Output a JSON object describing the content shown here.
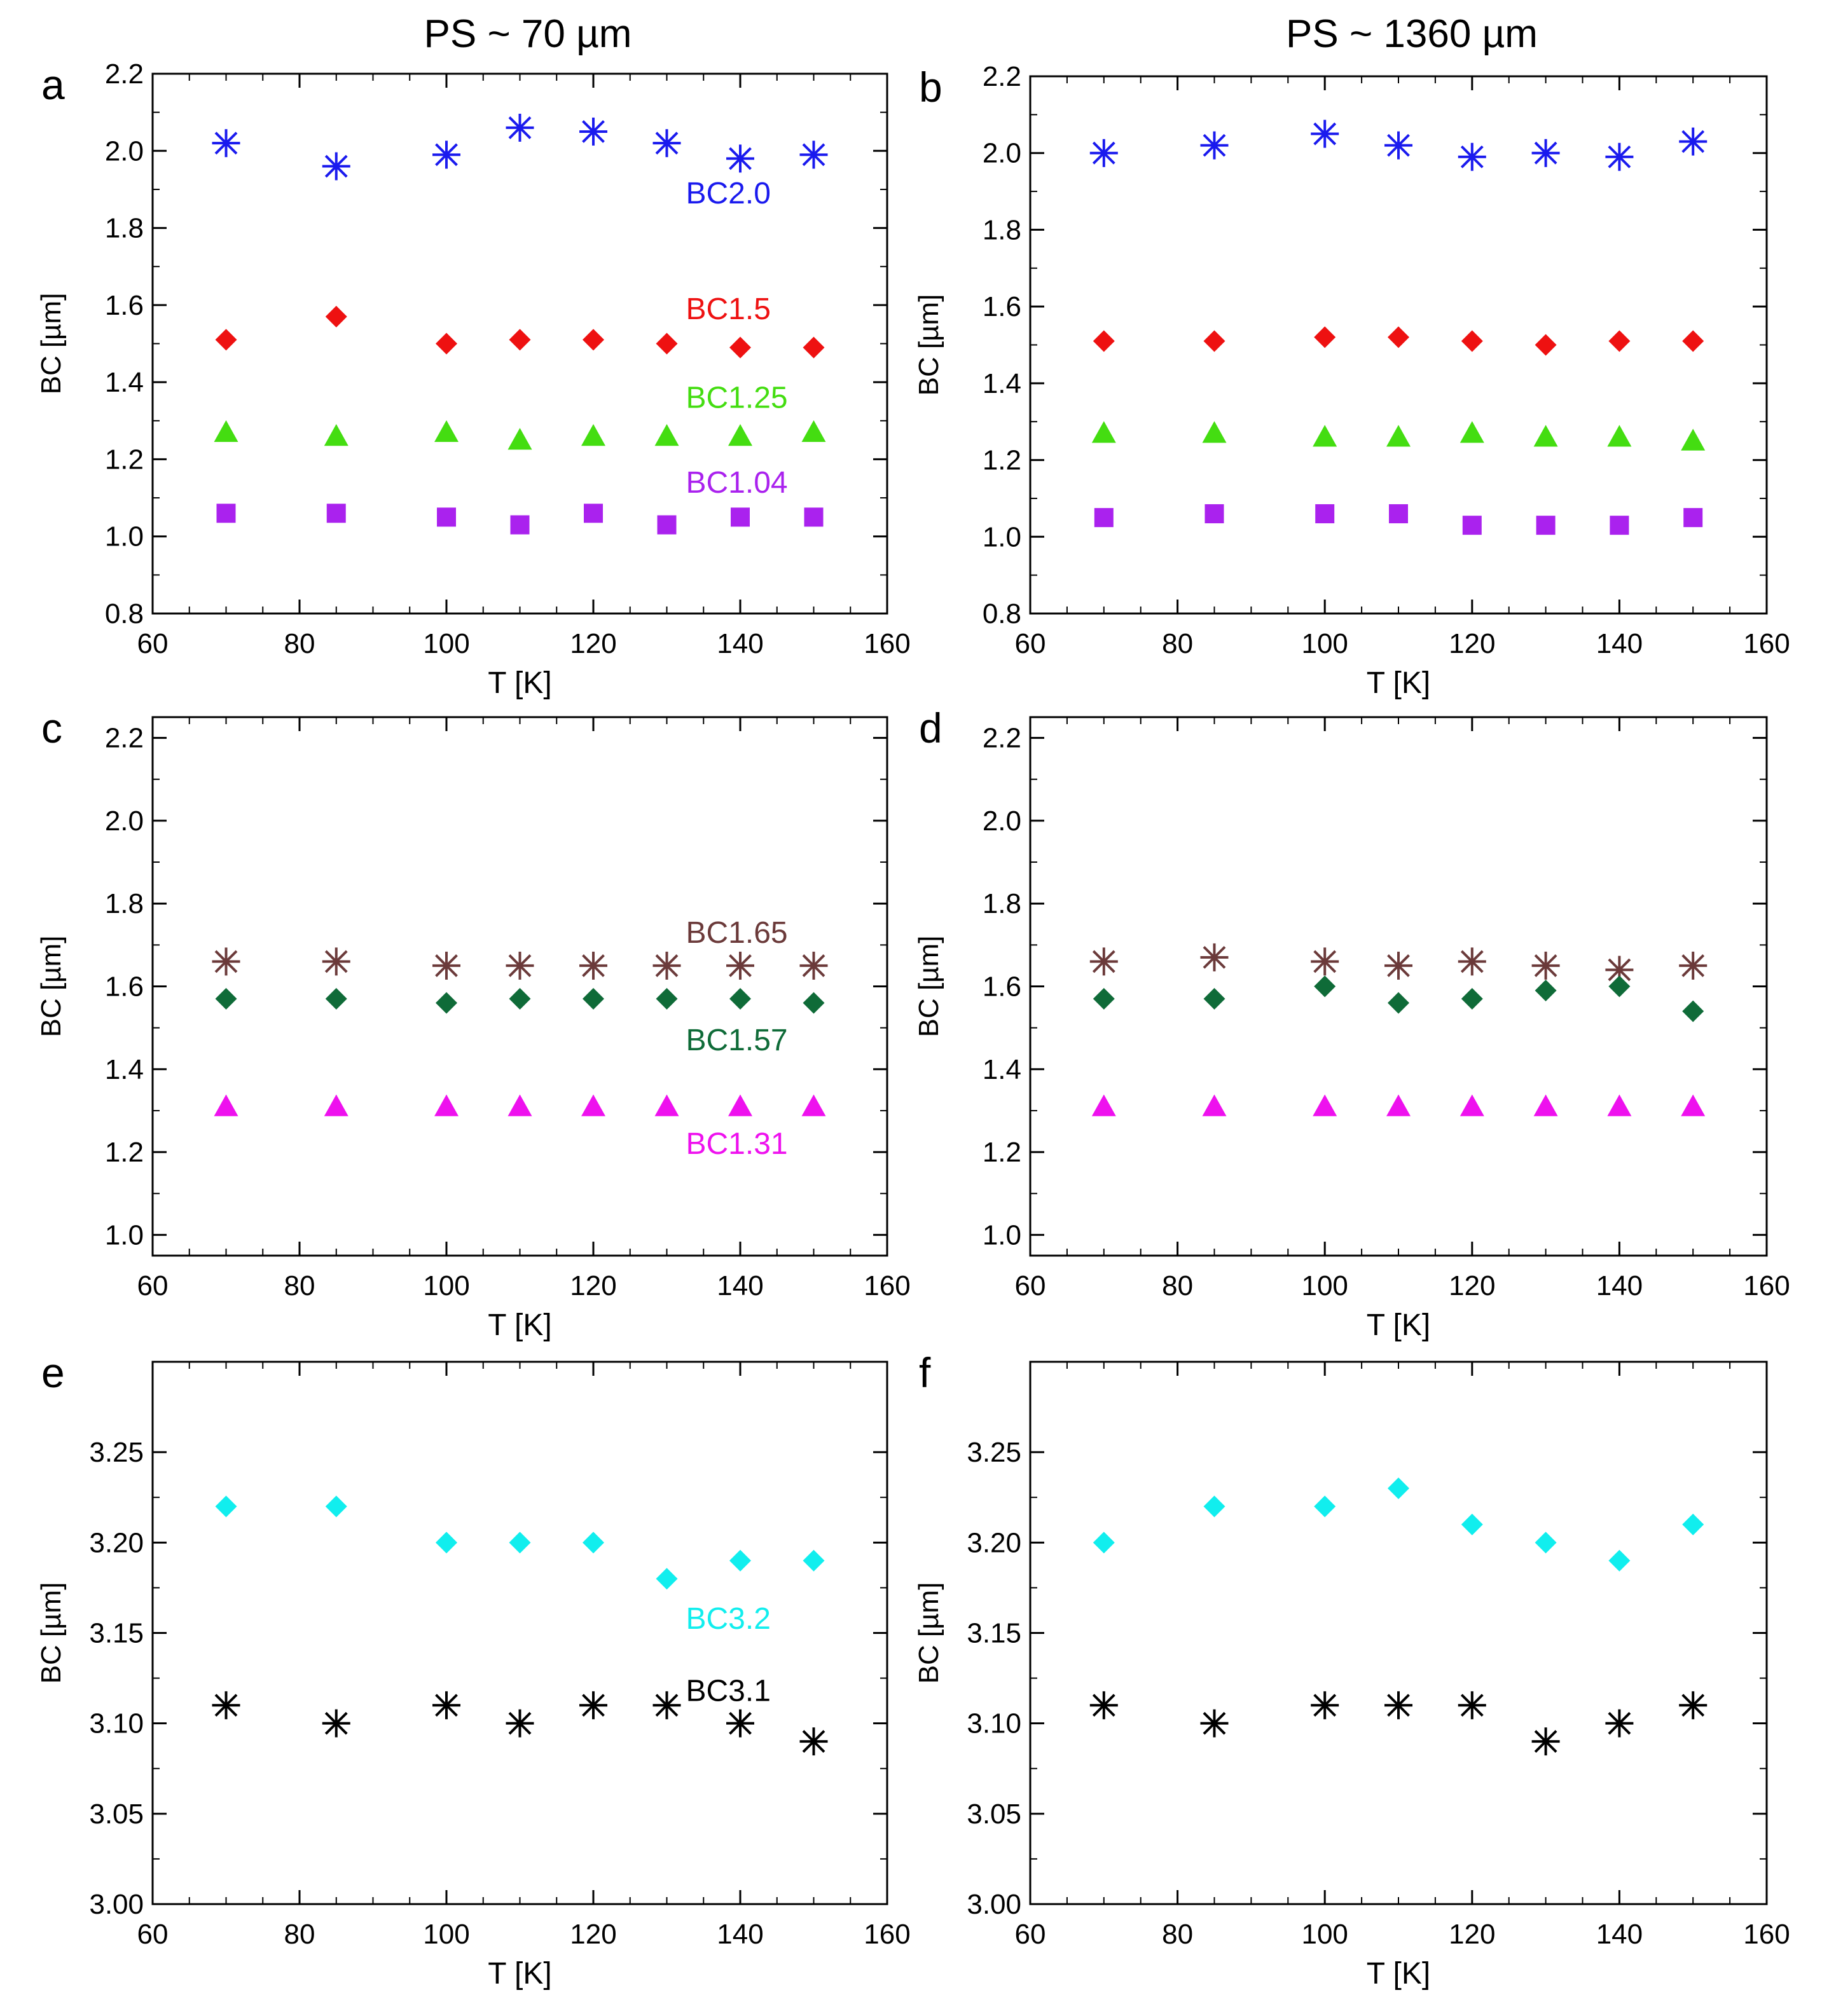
{
  "column_titles": [
    "PS ~ 70 µm",
    "PS ~ 1360 µm"
  ],
  "colors": {
    "blue": "#1a1aee",
    "red": "#ee1111",
    "lime": "#44dd11",
    "purple": "#aa22ee",
    "brown": "#6b3a3a",
    "darkgreen": "#0f6b38",
    "magenta": "#ee11ee",
    "cyan": "#11eeee",
    "black": "#000000"
  },
  "chart_data": [
    {
      "panel": "a",
      "type": "scatter",
      "xlabel": "T [K]",
      "ylabel": "BC [µm]",
      "xlim": [
        60,
        160
      ],
      "ylim": [
        0.8,
        2.2
      ],
      "xticks": [
        60,
        80,
        100,
        120,
        140,
        160
      ],
      "yticks": [
        "0.8",
        "1.0",
        "1.2",
        "1.4",
        "1.6",
        "1.8",
        "2.0",
        "2.2"
      ],
      "x": [
        70,
        85,
        100,
        110,
        120,
        130,
        140,
        150
      ],
      "series": [
        {
          "name": "BC2.0",
          "marker": "asterisk",
          "color": "#1a1aee",
          "values": [
            2.02,
            1.96,
            1.99,
            2.06,
            2.05,
            2.02,
            1.98,
            1.99
          ]
        },
        {
          "name": "BC1.5",
          "marker": "diamond",
          "color": "#ee1111",
          "values": [
            1.51,
            1.57,
            1.5,
            1.51,
            1.51,
            1.5,
            1.49,
            1.49
          ]
        },
        {
          "name": "BC1.25",
          "marker": "triangle",
          "color": "#44dd11",
          "values": [
            1.27,
            1.26,
            1.27,
            1.25,
            1.26,
            1.26,
            1.26,
            1.27
          ]
        },
        {
          "name": "BC1.04",
          "marker": "square",
          "color": "#aa22ee",
          "values": [
            1.06,
            1.06,
            1.05,
            1.03,
            1.06,
            1.03,
            1.05,
            1.05
          ]
        }
      ],
      "annotations": [
        {
          "text": "BC2.0",
          "x": 130,
          "y": 1.89,
          "color": "#1a1aee"
        },
        {
          "text": "BC1.5",
          "x": 130,
          "y": 1.59,
          "color": "#ee1111"
        },
        {
          "text": "BC1.25",
          "x": 130,
          "y": 1.36,
          "color": "#44dd11"
        },
        {
          "text": "BC1.04",
          "x": 130,
          "y": 1.14,
          "color": "#aa22ee"
        }
      ]
    },
    {
      "panel": "b",
      "type": "scatter",
      "xlabel": "T [K]",
      "ylabel": "BC [µm]",
      "xlim": [
        60,
        160
      ],
      "ylim": [
        0.8,
        2.2
      ],
      "xticks": [
        60,
        80,
        100,
        120,
        140,
        160
      ],
      "yticks": [
        "0.8",
        "1.0",
        "1.2",
        "1.4",
        "1.6",
        "1.8",
        "2.0",
        "2.2"
      ],
      "x": [
        70,
        85,
        100,
        110,
        120,
        130,
        140,
        150
      ],
      "series": [
        {
          "name": "BC2.0",
          "marker": "asterisk",
          "color": "#1a1aee",
          "values": [
            2.0,
            2.02,
            2.05,
            2.02,
            1.99,
            2.0,
            1.99,
            2.03
          ]
        },
        {
          "name": "BC1.5",
          "marker": "diamond",
          "color": "#ee1111",
          "values": [
            1.51,
            1.51,
            1.52,
            1.52,
            1.51,
            1.5,
            1.51,
            1.51
          ]
        },
        {
          "name": "BC1.25",
          "marker": "triangle",
          "color": "#44dd11",
          "values": [
            1.27,
            1.27,
            1.26,
            1.26,
            1.27,
            1.26,
            1.26,
            1.25
          ]
        },
        {
          "name": "BC1.04",
          "marker": "square",
          "color": "#aa22ee",
          "values": [
            1.05,
            1.06,
            1.06,
            1.06,
            1.03,
            1.03,
            1.03,
            1.05
          ]
        }
      ],
      "annotations": []
    },
    {
      "panel": "c",
      "type": "scatter",
      "xlabel": "T [K]",
      "ylabel": "BC [µm]",
      "xlim": [
        60,
        160
      ],
      "ylim": [
        0.95,
        2.25
      ],
      "xticks": [
        60,
        80,
        100,
        120,
        140,
        160
      ],
      "yticks": [
        "1.0",
        "1.2",
        "1.4",
        "1.6",
        "1.8",
        "2.0",
        "2.2"
      ],
      "x": [
        70,
        85,
        100,
        110,
        120,
        130,
        140,
        150
      ],
      "series": [
        {
          "name": "BC1.65",
          "marker": "asterisk",
          "color": "#6b3a3a",
          "values": [
            1.66,
            1.66,
            1.65,
            1.65,
            1.65,
            1.65,
            1.65,
            1.65
          ]
        },
        {
          "name": "BC1.57",
          "marker": "diamond",
          "color": "#0f6b38",
          "values": [
            1.57,
            1.57,
            1.56,
            1.57,
            1.57,
            1.57,
            1.57,
            1.56
          ]
        },
        {
          "name": "BC1.31",
          "marker": "triangle",
          "color": "#ee11ee",
          "values": [
            1.31,
            1.31,
            1.31,
            1.31,
            1.31,
            1.31,
            1.31,
            1.31
          ]
        }
      ],
      "annotations": [
        {
          "text": "BC1.65",
          "x": 130,
          "y": 1.73,
          "color": "#6b3a3a"
        },
        {
          "text": "BC1.57",
          "x": 130,
          "y": 1.47,
          "color": "#0f6b38"
        },
        {
          "text": "BC1.31",
          "x": 130,
          "y": 1.22,
          "color": "#ee11ee"
        }
      ]
    },
    {
      "panel": "d",
      "type": "scatter",
      "xlabel": "T [K]",
      "ylabel": "BC [µm]",
      "xlim": [
        60,
        160
      ],
      "ylim": [
        0.95,
        2.25
      ],
      "xticks": [
        60,
        80,
        100,
        120,
        140,
        160
      ],
      "yticks": [
        "1.0",
        "1.2",
        "1.4",
        "1.6",
        "1.8",
        "2.0",
        "2.2"
      ],
      "x": [
        70,
        85,
        100,
        110,
        120,
        130,
        140,
        150
      ],
      "series": [
        {
          "name": "BC1.65",
          "marker": "asterisk",
          "color": "#6b3a3a",
          "values": [
            1.66,
            1.67,
            1.66,
            1.65,
            1.66,
            1.65,
            1.64,
            1.65
          ]
        },
        {
          "name": "BC1.57",
          "marker": "diamond",
          "color": "#0f6b38",
          "values": [
            1.57,
            1.57,
            1.6,
            1.56,
            1.57,
            1.59,
            1.6,
            1.54
          ]
        },
        {
          "name": "BC1.31",
          "marker": "triangle",
          "color": "#ee11ee",
          "values": [
            1.31,
            1.31,
            1.31,
            1.31,
            1.31,
            1.31,
            1.31,
            1.31
          ]
        }
      ],
      "annotations": []
    },
    {
      "panel": "e",
      "type": "scatter",
      "xlabel": "T [K]",
      "ylabel": "BC [µm]",
      "xlim": [
        60,
        160
      ],
      "ylim": [
        3.0,
        3.3
      ],
      "xticks": [
        60,
        80,
        100,
        120,
        140,
        160
      ],
      "yticks": [
        "3.00",
        "3.05",
        "3.10",
        "3.15",
        "3.20",
        "3.25"
      ],
      "x": [
        70,
        85,
        100,
        110,
        120,
        130,
        140,
        150
      ],
      "series": [
        {
          "name": "BC3.2",
          "marker": "diamond",
          "color": "#11eeee",
          "values": [
            3.22,
            3.22,
            3.2,
            3.2,
            3.2,
            3.18,
            3.19,
            3.19
          ]
        },
        {
          "name": "BC3.1",
          "marker": "asterisk",
          "color": "#000000",
          "values": [
            3.11,
            3.1,
            3.11,
            3.1,
            3.11,
            3.11,
            3.1,
            3.09
          ]
        }
      ],
      "annotations": [
        {
          "text": "BC3.2",
          "x": 130,
          "y": 3.158,
          "color": "#11eeee"
        },
        {
          "text": "BC3.1",
          "x": 130,
          "y": 3.118,
          "color": "#000000"
        }
      ]
    },
    {
      "panel": "f",
      "type": "scatter",
      "xlabel": "T [K]",
      "ylabel": "BC [µm]",
      "xlim": [
        60,
        160
      ],
      "ylim": [
        3.0,
        3.3
      ],
      "xticks": [
        60,
        80,
        100,
        120,
        140,
        160
      ],
      "yticks": [
        "3.00",
        "3.05",
        "3.10",
        "3.15",
        "3.20",
        "3.25"
      ],
      "x": [
        70,
        85,
        100,
        110,
        120,
        130,
        140,
        150
      ],
      "series": [
        {
          "name": "BC3.2",
          "marker": "diamond",
          "color": "#11eeee",
          "values": [
            3.2,
            3.22,
            3.22,
            3.23,
            3.21,
            3.2,
            3.19,
            3.21
          ]
        },
        {
          "name": "BC3.1",
          "marker": "asterisk",
          "color": "#000000",
          "values": [
            3.11,
            3.1,
            3.11,
            3.11,
            3.11,
            3.09,
            3.1,
            3.11
          ]
        }
      ],
      "annotations": []
    }
  ]
}
